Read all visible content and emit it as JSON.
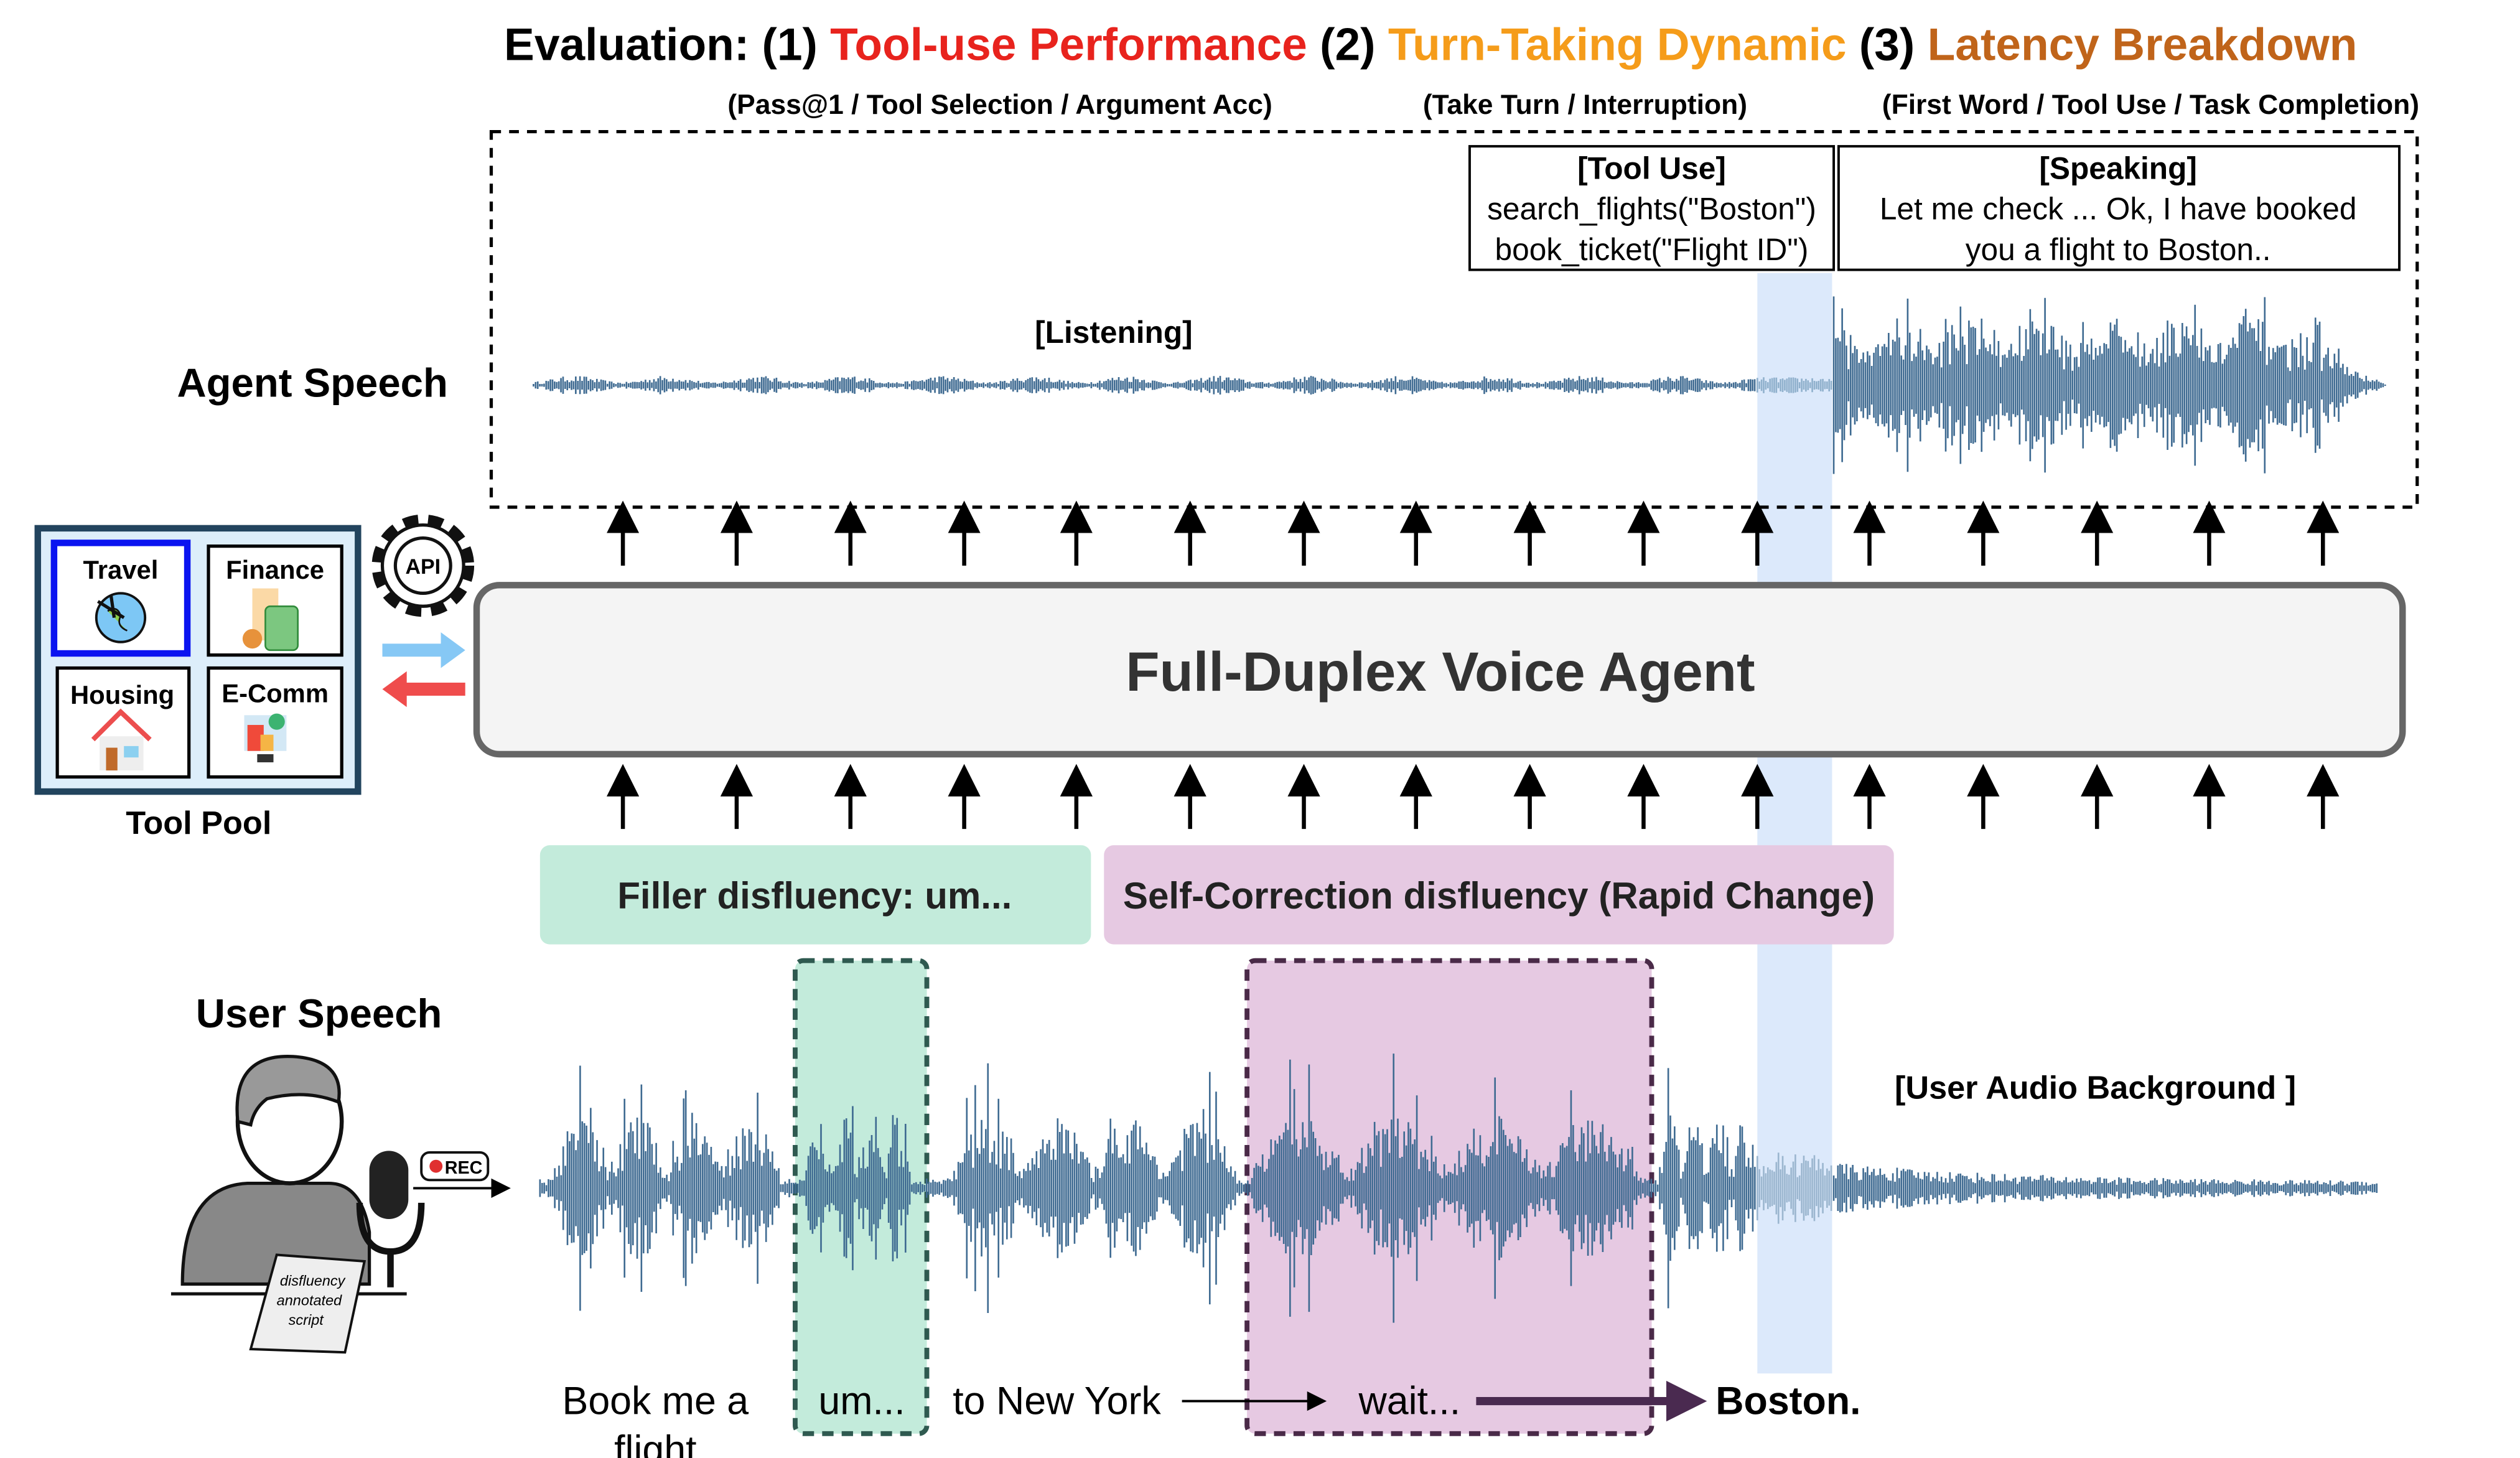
{
  "title": {
    "prefix": "Evaluation: (1) ",
    "part1": "Tool-use Performance",
    "mid1": " (2) ",
    "part2": "Turn-Taking Dynamic",
    "mid2": " (3) ",
    "part3": "Latency Breakdown",
    "colors": {
      "part1": "#e8231d",
      "part2": "#f59c1a",
      "part3": "#c0641a"
    }
  },
  "metrics": {
    "tool_use": "(Pass@1 / Tool Selection / Argument Acc)",
    "turn_taking": "(Take Turn / Interruption)",
    "latency": "(First Word / Tool Use / Task Completion)"
  },
  "agent": {
    "label": "Agent Speech",
    "listening": "[Listening]",
    "tool_use_title": "[Tool Use]",
    "tool_use_line1": "search_flights(\"Boston\")",
    "tool_use_line2": "book_ticket(\"Flight ID\")",
    "speaking_title": "[Speaking]",
    "speaking_line1": "Let me check ... Ok, I have booked",
    "speaking_line2": "you a flight to Boston.."
  },
  "voice_agent": {
    "label": "Full-Duplex Voice Agent"
  },
  "tool_pool": {
    "label": "Tool Pool",
    "api": "API",
    "tools": [
      {
        "label": "Travel",
        "icon": "globe-plane-icon",
        "selected": true
      },
      {
        "label": "Finance",
        "icon": "calculator-icon",
        "selected": false
      },
      {
        "label": "Housing",
        "icon": "house-icon",
        "selected": false
      },
      {
        "label": "E-Comm",
        "icon": "shopping-icon",
        "selected": false
      }
    ]
  },
  "disfluency": {
    "filler": "Filler disfluency: um...",
    "self_correction": "Self-Correction disfluency (Rapid Change)"
  },
  "user": {
    "label": "User Speech",
    "rec": "REC",
    "script_line1": "disfluency",
    "script_line2": "annotated",
    "script_line3": "script",
    "background": "[User Audio Background ]",
    "transcript": {
      "w1a": "Book me a",
      "w1b": "flight",
      "w2": "um...",
      "w3": "to  New York",
      "w4": "wait...",
      "w5": "Boston."
    }
  },
  "colors": {
    "waveform": "#3e6a91",
    "filler_fill": "#c3ebdb",
    "correction_fill": "#e6c9e2",
    "highlight_band": "#dce9fb",
    "selected_tool_border": "#0a14f0"
  }
}
